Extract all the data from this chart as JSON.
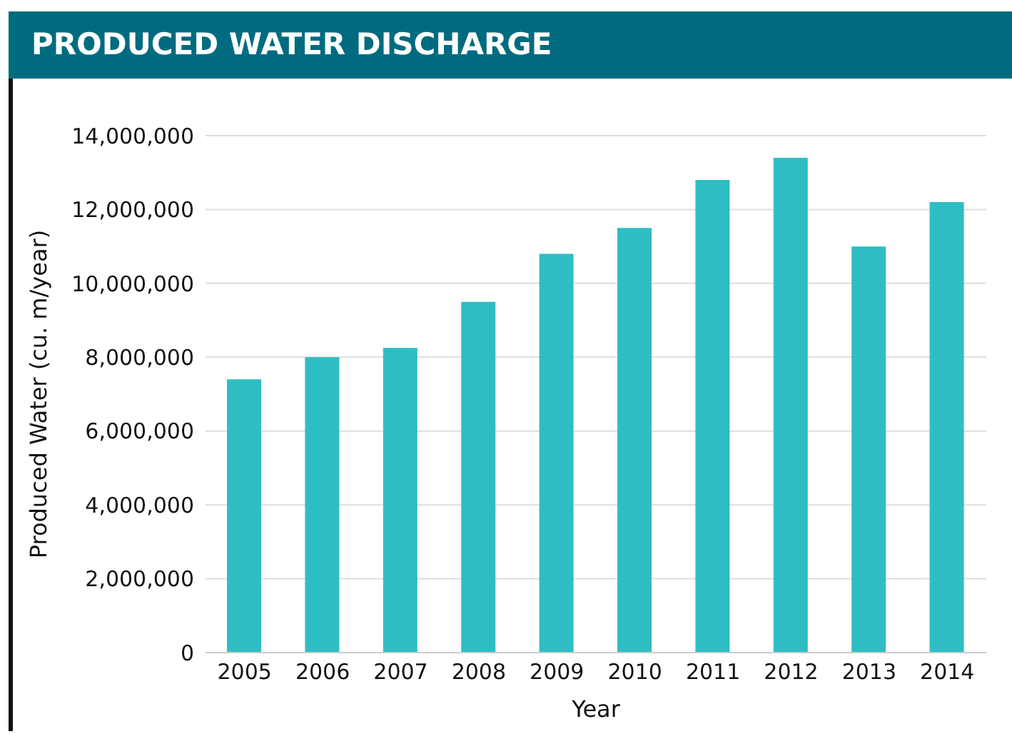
{
  "chart_data": {
    "type": "bar",
    "title": "PRODUCED WATER DISCHARGE",
    "xlabel": "Year",
    "ylabel": "Produced Water (cu. m/year)",
    "categories": [
      "2005",
      "2006",
      "2007",
      "2008",
      "2009",
      "2010",
      "2011",
      "2012",
      "2013",
      "2014"
    ],
    "values": [
      7400000,
      8000000,
      8250000,
      9500000,
      10800000,
      11500000,
      12800000,
      13400000,
      11000000,
      12200000
    ],
    "color": "#2fbdc4",
    "ylim": [
      0,
      14000000
    ],
    "yticks": [
      0,
      {
        "value": 2000000,
        "label": "2,000,000"
      },
      {
        "value": 4000000,
        "label": "4,000,000"
      },
      {
        "value": 6000000,
        "label": "6,000,000"
      },
      {
        "value": 8000000,
        "label": "8,000,000"
      },
      {
        "value": 10000000,
        "label": "10,000,000"
      },
      {
        "value": 12000000,
        "label": "12,000,000"
      },
      {
        "value": 14000000,
        "label": "14,000,000"
      }
    ],
    "grid": "y"
  }
}
